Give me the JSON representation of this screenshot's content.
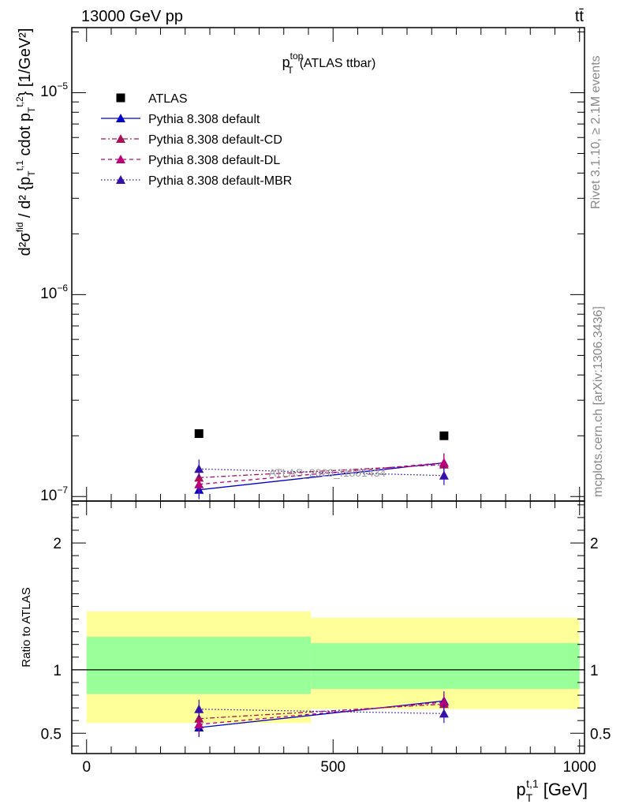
{
  "header": {
    "left": "13000 GeV pp",
    "right": "tt̄"
  },
  "side_text": {
    "rivet": "Rivet 3.1.10, ≥ 2.1M events",
    "mcplots": "mcplots.cern.ch [arXiv:1306.3436]"
  },
  "watermark": "ATLAS_2020_I1801434",
  "colors": {
    "data": "#000000",
    "default": "#0000cc",
    "cd": "#aa1155",
    "dl": "#bb0077",
    "mbr": "#3311aa",
    "band_inner": "#99ff99",
    "band_outer": "#ffff99"
  },
  "chart_data": [
    {
      "type": "scatter",
      "panel": "main",
      "title": "p_T^top (ATLAS ttbar)",
      "title_parts": {
        "p": "p",
        "sup": "top",
        "sub": "T",
        "rest": "(ATLAS ttbar)"
      },
      "ylabel": "d²σ^fid / d² {p_T^t,1 cdot p_T^t,2} [1/GeV²]",
      "yscale": "log",
      "ylim": [
        9.5e-08,
        2.1e-05
      ],
      "xlim": [
        -30,
        1010
      ],
      "ytick_labels": {
        "e5": "10",
        "e5_exp": "−5",
        "e6": "10",
        "e6_exp": "−6",
        "e7": "10",
        "e7_exp": "−7"
      },
      "legend_position": "top-left",
      "series": [
        {
          "name": "ATLAS",
          "key": "data",
          "marker": "square",
          "line": "none",
          "x": [
            228,
            725
          ],
          "y": [
            2.05e-07,
            2e-07
          ]
        },
        {
          "name": "Pythia 8.308 default",
          "key": "default",
          "marker": "triangle",
          "line": "solid",
          "x": [
            228,
            725
          ],
          "y": [
            1.08e-07,
            1.47e-07
          ]
        },
        {
          "name": "Pythia 8.308 default-CD",
          "key": "cd",
          "marker": "triangle",
          "line": "dashdot",
          "x": [
            228,
            725
          ],
          "y": [
            1.24e-07,
            1.44e-07
          ]
        },
        {
          "name": "Pythia 8.308 default-DL",
          "key": "dl",
          "marker": "triangle",
          "line": "dashed",
          "x": [
            228,
            725
          ],
          "y": [
            1.15e-07,
            1.47e-07
          ]
        },
        {
          "name": "Pythia 8.308 default-MBR",
          "key": "mbr",
          "marker": "triangle",
          "line": "dotted",
          "x": [
            228,
            725
          ],
          "y": [
            1.37e-07,
            1.27e-07
          ]
        }
      ]
    },
    {
      "type": "scatter",
      "panel": "ratio",
      "ylabel": "Ratio to ATLAS",
      "xlabel": "p_T^t,1 [GeV]",
      "xlabel_parts": {
        "p": "p",
        "sup": "t,1",
        "sub": "T",
        "rest": "[GeV]"
      },
      "ylim": [
        0.34,
        2.33
      ],
      "xlim": [
        -30,
        1010
      ],
      "xticks": [
        0,
        500,
        1000
      ],
      "xtick_labels": [
        "0",
        "500",
        "1000"
      ],
      "yticks": [
        0.5,
        1,
        2
      ],
      "ytick_labels": [
        "0.5",
        "1",
        "2"
      ],
      "bands": [
        {
          "x0": 0,
          "x1": 455,
          "inner": [
            0.81,
            1.26
          ],
          "outer": [
            0.58,
            1.46
          ]
        },
        {
          "x0": 455,
          "x1": 1000,
          "inner": [
            0.85,
            1.21
          ],
          "outer": [
            0.69,
            1.41
          ]
        }
      ],
      "series": [
        {
          "name": "Pythia 8.308 default",
          "key": "default",
          "x": [
            228,
            725
          ],
          "y": [
            0.545,
            0.755
          ]
        },
        {
          "name": "Pythia 8.308 default-CD",
          "key": "cd",
          "x": [
            228,
            725
          ],
          "y": [
            0.615,
            0.73
          ]
        },
        {
          "name": "Pythia 8.308 default-DL",
          "key": "dl",
          "x": [
            228,
            725
          ],
          "y": [
            0.57,
            0.745
          ]
        },
        {
          "name": "Pythia 8.308 default-MBR",
          "key": "mbr",
          "x": [
            228,
            725
          ],
          "y": [
            0.69,
            0.655
          ]
        }
      ]
    }
  ]
}
